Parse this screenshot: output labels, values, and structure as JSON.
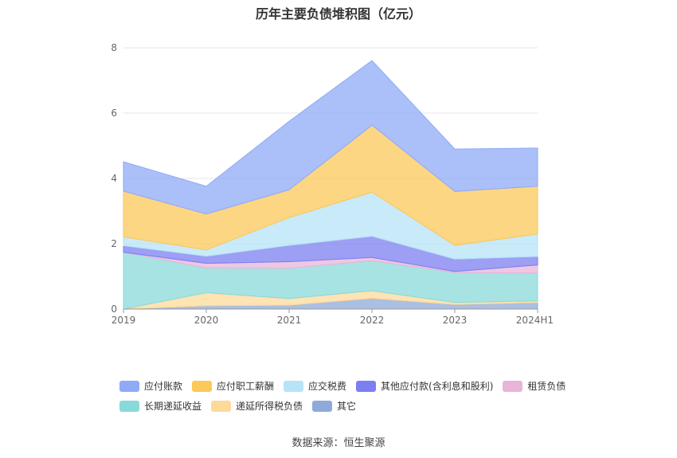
{
  "title": "历年主要负债堆积图（亿元）",
  "source": "数据来源：恒生聚源",
  "chart_data": {
    "type": "area",
    "stacked": true,
    "categories": [
      "2019",
      "2020",
      "2021",
      "2022",
      "2023",
      "2024H1"
    ],
    "yticks": [
      0,
      2,
      4,
      6,
      8
    ],
    "ylim": [
      0,
      8
    ],
    "grid": true,
    "legend_position": "bottom",
    "series": [
      {
        "name": "其它",
        "color": "#8faad9",
        "values": [
          0.0,
          0.1,
          0.12,
          0.33,
          0.14,
          0.2
        ]
      },
      {
        "name": "递延所得税负债",
        "color": "#fdd99a",
        "values": [
          0.0,
          0.4,
          0.2,
          0.23,
          0.06,
          0.05
        ]
      },
      {
        "name": "长期递延收益",
        "color": "#8ad9d9",
        "values": [
          1.74,
          0.76,
          0.93,
          0.92,
          0.92,
          0.85
        ]
      },
      {
        "name": "租赁负债",
        "color": "#e8b4d8",
        "values": [
          0.0,
          0.14,
          0.2,
          0.1,
          0.03,
          0.25
        ]
      },
      {
        "name": "其他应付款(含利息和股利)",
        "color": "#7b7ff0",
        "values": [
          0.2,
          0.22,
          0.5,
          0.65,
          0.38,
          0.26
        ]
      },
      {
        "name": "应交税费",
        "color": "#b7e3f7",
        "values": [
          0.27,
          0.19,
          0.85,
          1.35,
          0.42,
          0.69
        ]
      },
      {
        "name": "应付职工薪酬",
        "color": "#fbc85a",
        "values": [
          1.4,
          1.1,
          0.85,
          2.05,
          1.65,
          1.46
        ]
      },
      {
        "name": "应付账款",
        "color": "#8faaf7",
        "values": [
          0.9,
          0.85,
          2.1,
          1.98,
          1.3,
          1.17
        ]
      }
    ],
    "legend_order": [
      "应付账款",
      "应付职工薪酬",
      "应交税费",
      "其他应付款(含利息和股利)",
      "租赁负债",
      "长期递延收益",
      "递延所得税负债",
      "其它"
    ]
  }
}
